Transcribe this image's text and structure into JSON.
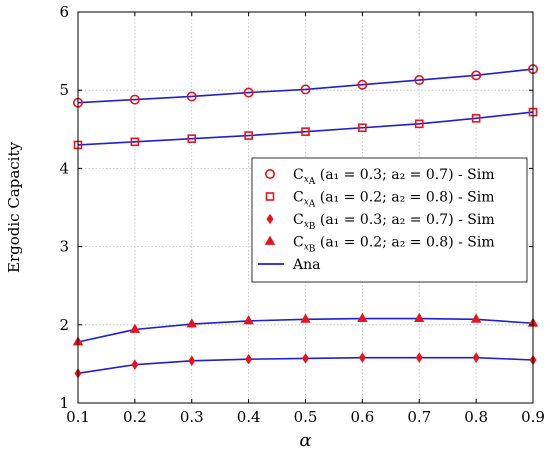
{
  "chart_data": {
    "type": "line",
    "xlabel": "α",
    "ylabel": "Ergodic Capacity",
    "xlim": [
      0.1,
      0.9
    ],
    "ylim": [
      1,
      6
    ],
    "xticks": [
      "0.1",
      "0.2",
      "0.3",
      "0.4",
      "0.5",
      "0.6",
      "0.7",
      "0.8",
      "0.9"
    ],
    "yticks": [
      "1",
      "2",
      "3",
      "4",
      "5",
      "6"
    ],
    "grid": true,
    "legend_position": "right",
    "x": [
      0.1,
      0.2,
      0.3,
      0.4,
      0.5,
      0.6,
      0.7,
      0.8,
      0.9
    ],
    "line_color": "#1f1fd6",
    "marker_color": "#e8131b",
    "series": [
      {
        "marker": "circle",
        "legend": {
          "main": "C",
          "sub_var": "x",
          "sub_idx": "A",
          "params": " (a₁ = 0.3; a₂ = 0.7) - Sim"
        },
        "values": [
          4.84,
          4.88,
          4.92,
          4.97,
          5.01,
          5.07,
          5.13,
          5.19,
          5.27
        ]
      },
      {
        "marker": "square",
        "legend": {
          "main": "C",
          "sub_var": "x",
          "sub_idx": "A",
          "params": " (a₁ = 0.2; a₂ = 0.8) - Sim"
        },
        "values": [
          4.3,
          4.34,
          4.38,
          4.42,
          4.47,
          4.52,
          4.57,
          4.64,
          4.72
        ]
      },
      {
        "marker": "diamond",
        "legend": {
          "main": "C",
          "sub_var": "x",
          "sub_idx": "B",
          "params": " (a₁ = 0.3; a₂ = 0.7) - Sim"
        },
        "values": [
          1.38,
          1.49,
          1.54,
          1.56,
          1.57,
          1.58,
          1.58,
          1.58,
          1.55
        ]
      },
      {
        "marker": "triangle",
        "legend": {
          "main": "C",
          "sub_var": "x",
          "sub_idx": "B",
          "params": " (a₁ = 0.2; a₂ = 0.8) - Sim"
        },
        "values": [
          1.78,
          1.94,
          2.01,
          2.05,
          2.07,
          2.08,
          2.08,
          2.07,
          2.02
        ]
      }
    ],
    "ana_legend": "Ana"
  }
}
